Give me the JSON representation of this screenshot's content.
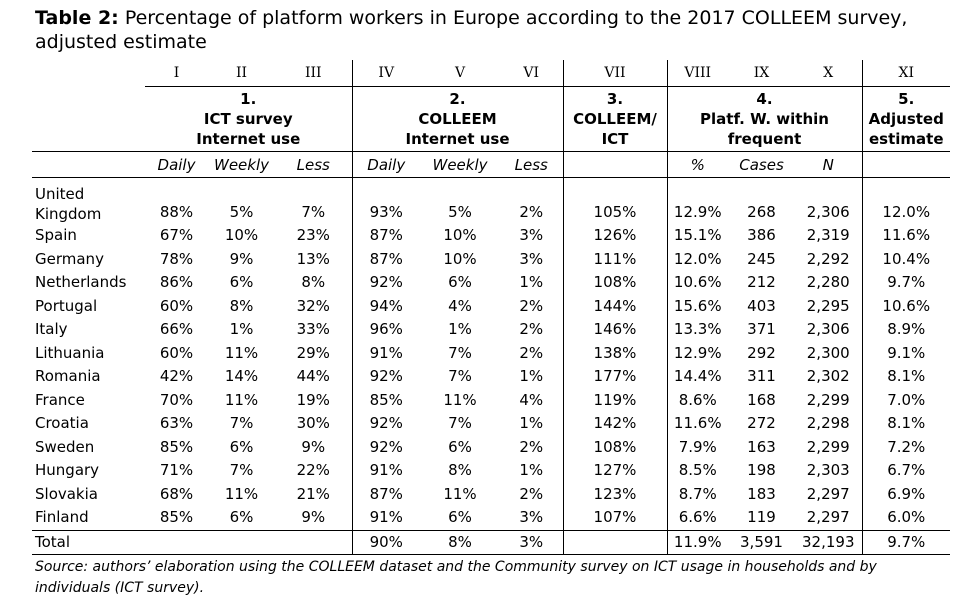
{
  "title": {
    "label": "Table 2:",
    "text": "Percentage of platform workers in Europe according to the 2017 COLLEEM survey, adjusted estimate"
  },
  "roman": [
    "I",
    "II",
    "III",
    "IV",
    "V",
    "VI",
    "VII",
    "VIII",
    "IX",
    "X",
    "XI"
  ],
  "groups": [
    {
      "num": "1.",
      "lines": [
        "ICT survey",
        "Internet use"
      ]
    },
    {
      "num": "2.",
      "lines": [
        "COLLEEM",
        "Internet use"
      ]
    },
    {
      "num": "3.",
      "lines": [
        "COLLEEM/",
        "ICT"
      ]
    },
    {
      "num": "4.",
      "lines": [
        "Platf. W. within",
        "frequent"
      ]
    },
    {
      "num": "5.",
      "lines": [
        "Adjusted",
        "estimate"
      ]
    }
  ],
  "subheaders": [
    "Daily",
    "Weekly",
    "Less",
    "Daily",
    "Weekly",
    "Less",
    "",
    "%",
    "Cases",
    "N",
    ""
  ],
  "rows": [
    {
      "country": "United Kingdom",
      "values": [
        "88%",
        "5%",
        "7%",
        "93%",
        "5%",
        "2%",
        "105%",
        "12.9%",
        "268",
        "2,306",
        "12.0%"
      ]
    },
    {
      "country": "Spain",
      "values": [
        "67%",
        "10%",
        "23%",
        "87%",
        "10%",
        "3%",
        "126%",
        "15.1%",
        "386",
        "2,319",
        "11.6%"
      ]
    },
    {
      "country": "Germany",
      "values": [
        "78%",
        "9%",
        "13%",
        "87%",
        "10%",
        "3%",
        "111%",
        "12.0%",
        "245",
        "2,292",
        "10.4%"
      ]
    },
    {
      "country": "Netherlands",
      "values": [
        "86%",
        "6%",
        "8%",
        "92%",
        "6%",
        "1%",
        "108%",
        "10.6%",
        "212",
        "2,280",
        "9.7%"
      ]
    },
    {
      "country": "Portugal",
      "values": [
        "60%",
        "8%",
        "32%",
        "94%",
        "4%",
        "2%",
        "144%",
        "15.6%",
        "403",
        "2,295",
        "10.6%"
      ]
    },
    {
      "country": "Italy",
      "values": [
        "66%",
        "1%",
        "33%",
        "96%",
        "1%",
        "2%",
        "146%",
        "13.3%",
        "371",
        "2,306",
        "8.9%"
      ]
    },
    {
      "country": "Lithuania",
      "values": [
        "60%",
        "11%",
        "29%",
        "91%",
        "7%",
        "2%",
        "138%",
        "12.9%",
        "292",
        "2,300",
        "9.1%"
      ]
    },
    {
      "country": "Romania",
      "values": [
        "42%",
        "14%",
        "44%",
        "92%",
        "7%",
        "1%",
        "177%",
        "14.4%",
        "311",
        "2,302",
        "8.1%"
      ]
    },
    {
      "country": "France",
      "values": [
        "70%",
        "11%",
        "19%",
        "85%",
        "11%",
        "4%",
        "119%",
        "8.6%",
        "168",
        "2,299",
        "7.0%"
      ]
    },
    {
      "country": "Croatia",
      "values": [
        "63%",
        "7%",
        "30%",
        "92%",
        "7%",
        "1%",
        "142%",
        "11.6%",
        "272",
        "2,298",
        "8.1%"
      ]
    },
    {
      "country": "Sweden",
      "values": [
        "85%",
        "6%",
        "9%",
        "92%",
        "6%",
        "2%",
        "108%",
        "7.9%",
        "163",
        "2,299",
        "7.2%"
      ]
    },
    {
      "country": "Hungary",
      "values": [
        "71%",
        "7%",
        "22%",
        "91%",
        "8%",
        "1%",
        "127%",
        "8.5%",
        "198",
        "2,303",
        "6.7%"
      ]
    },
    {
      "country": "Slovakia",
      "values": [
        "68%",
        "11%",
        "21%",
        "87%",
        "11%",
        "2%",
        "123%",
        "8.7%",
        "183",
        "2,297",
        "6.9%"
      ]
    },
    {
      "country": "Finland",
      "values": [
        "85%",
        "6%",
        "9%",
        "91%",
        "6%",
        "3%",
        "107%",
        "6.6%",
        "119",
        "2,297",
        "6.0%"
      ]
    }
  ],
  "total": {
    "label": "Total",
    "values": [
      "",
      "",
      "",
      "90%",
      "8%",
      "3%",
      "",
      "11.9%",
      "3,591",
      "32,193",
      "9.7%"
    ]
  },
  "source": "Source: authors’ elaboration using the COLLEEM dataset and the Community survey on ICT usage in households and by individuals (ICT survey)."
}
